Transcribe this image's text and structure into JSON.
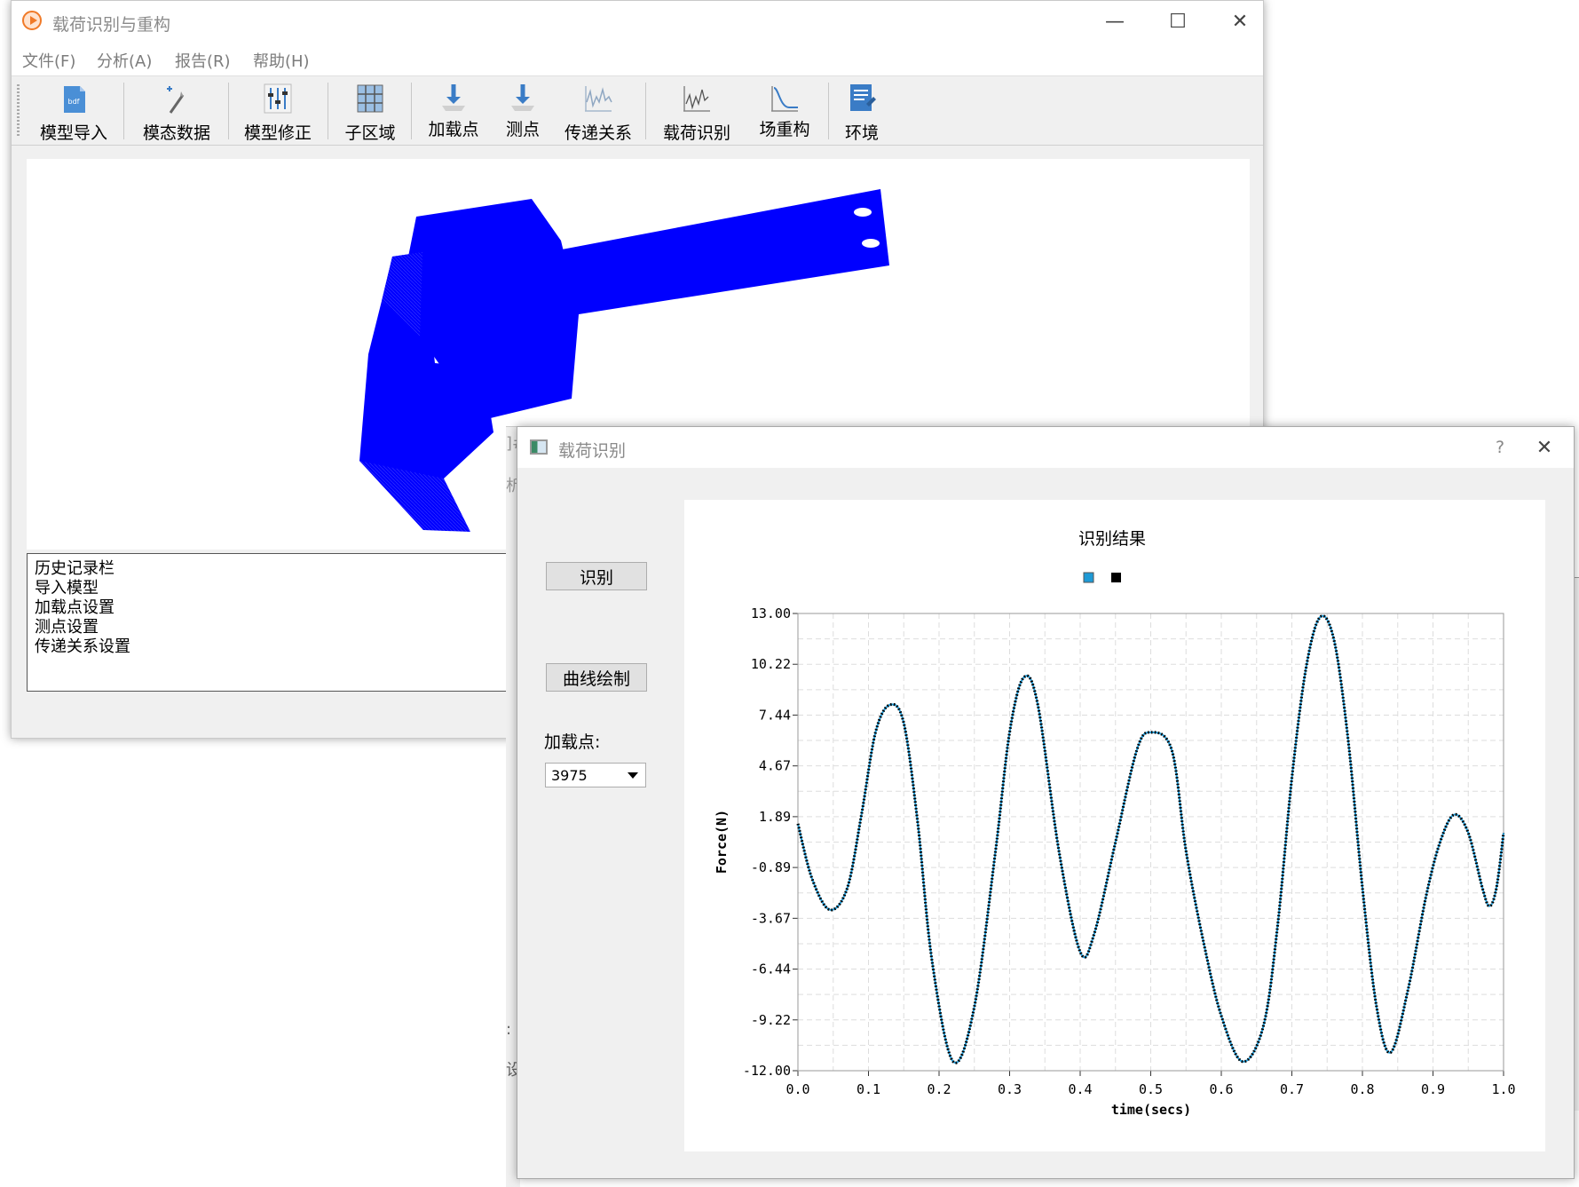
{
  "main_window": {
    "title": "载荷识别与重构",
    "menu": [
      "文件(F)",
      "分析(A)",
      "报告(R)",
      "帮助(H)"
    ],
    "toolbar": [
      {
        "label": "模型导入",
        "icon": "bdf-file-icon"
      },
      {
        "label": "模态数据",
        "icon": "modal-wand-icon"
      },
      {
        "label": "模型修正",
        "icon": "sliders-icon"
      },
      {
        "label": "子区域",
        "icon": "grid-icon"
      },
      {
        "label": "加载点",
        "icon": "load-arrow-icon"
      },
      {
        "label": "测点",
        "icon": "measure-arrow-icon"
      },
      {
        "label": "传递关系",
        "icon": "transfer-wave-icon"
      },
      {
        "label": "载荷识别",
        "icon": "load-identify-icon"
      },
      {
        "label": "场重构",
        "icon": "field-curve-icon"
      },
      {
        "label": "环境",
        "icon": "environment-doc-icon"
      }
    ],
    "model_color": "#0000ff",
    "history": [
      "历史记录栏",
      "导入模型",
      "加载点设置",
      "测点设置",
      "传递关系设置"
    ],
    "controls": {
      "minimize": "—",
      "maximize": "☐",
      "close": "✕"
    }
  },
  "background_fragments": [
    "]#",
    "析",
    ":",
    "设"
  ],
  "dialog": {
    "title": "载荷识别",
    "help": "?",
    "close": "✕",
    "identify_button": "识别",
    "plot_button": "曲线绘制",
    "load_point_label": "加载点:",
    "load_point_value": "3975"
  },
  "chart_data": {
    "type": "line",
    "title": "识别结果",
    "xlabel": "time(secs)",
    "ylabel": "Force(N)",
    "xlim": [
      0.0,
      1.0
    ],
    "ylim": [
      -12.0,
      13.0
    ],
    "x_ticks": [
      "0.0",
      "0.1",
      "0.2",
      "0.3",
      "0.4",
      "0.5",
      "0.6",
      "0.7",
      "0.8",
      "0.9",
      "1.0"
    ],
    "y_ticks": [
      "13.00",
      "10.22",
      "7.44",
      "4.67",
      "1.89",
      "-0.89",
      "-3.67",
      "-6.44",
      "-9.22",
      "-12.00"
    ],
    "grid": true,
    "legend": "top-center",
    "series": [
      {
        "color": "#1e9ad6",
        "style": "line"
      },
      {
        "color": "#000000",
        "style": "markers"
      }
    ],
    "x": [
      0.0,
      0.02,
      0.045,
      0.07,
      0.09,
      0.11,
      0.13,
      0.15,
      0.17,
      0.19,
      0.22,
      0.25,
      0.28,
      0.3,
      0.32,
      0.34,
      0.37,
      0.4,
      0.42,
      0.45,
      0.48,
      0.5,
      0.53,
      0.55,
      0.575,
      0.6,
      0.63,
      0.66,
      0.68,
      0.7,
      0.72,
      0.74,
      0.76,
      0.78,
      0.8,
      0.82,
      0.84,
      0.865,
      0.89,
      0.91,
      0.93,
      0.95,
      0.97,
      0.98,
      0.99,
      1.0
    ],
    "values": [
      1.5,
      -1.5,
      -3.2,
      -2.0,
      2.0,
      6.5,
      8.0,
      7.0,
      1.5,
      -6.0,
      -11.5,
      -8.5,
      0.0,
      6.5,
      9.5,
      8.0,
      0.0,
      -5.5,
      -4.5,
      0.5,
      5.5,
      6.5,
      5.5,
      0.0,
      -5.0,
      -9.0,
      -11.5,
      -9.5,
      -4.0,
      4.0,
      10.0,
      12.8,
      11.5,
      6.0,
      -2.0,
      -8.5,
      -11.0,
      -7.5,
      -2.5,
      0.5,
      2.0,
      1.0,
      -2.0,
      -3.0,
      -2.0,
      1.0
    ]
  }
}
